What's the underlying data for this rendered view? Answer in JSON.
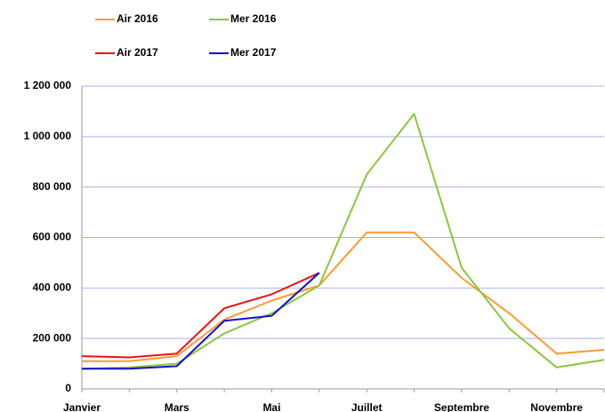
{
  "chart_data": {
    "type": "line",
    "categories": [
      "Janvier",
      null,
      "Mars",
      null,
      "Mai",
      null,
      "Juillet",
      null,
      "Septembre",
      null,
      "Novembre",
      null
    ],
    "series": [
      {
        "name": "Air 2016",
        "color": "#ff9933",
        "values": [
          110000,
          110000,
          130000,
          275000,
          350000,
          410000,
          620000,
          620000,
          440000,
          300000,
          140000,
          155000
        ]
      },
      {
        "name": "Mer 2016",
        "color": "#8dc63f",
        "values": [
          80000,
          85000,
          100000,
          220000,
          300000,
          410000,
          850000,
          1090000,
          480000,
          240000,
          85000,
          115000
        ]
      },
      {
        "name": "Air 2017",
        "color": "#ee1111",
        "values": [
          130000,
          125000,
          140000,
          320000,
          375000,
          460000,
          null,
          null,
          null,
          null,
          null,
          null
        ]
      },
      {
        "name": "Mer 2017",
        "color": "#1111cc",
        "values": [
          80000,
          80000,
          90000,
          270000,
          290000,
          460000,
          null,
          null,
          null,
          null,
          null,
          null
        ]
      }
    ],
    "ylim": [
      0,
      1200000
    ],
    "yticks": [
      0,
      {
        "value": 200000,
        "label": "200 000"
      },
      {
        "value": 400000,
        "label": "400 000"
      },
      {
        "value": 600000,
        "label": "600 000"
      },
      {
        "value": 800000,
        "label": "800 000"
      },
      {
        "value": 1000000,
        "label": "1 000 000"
      },
      {
        "value": 1200000,
        "label": "1 200 000"
      }
    ],
    "grid": true,
    "legend": "top"
  }
}
